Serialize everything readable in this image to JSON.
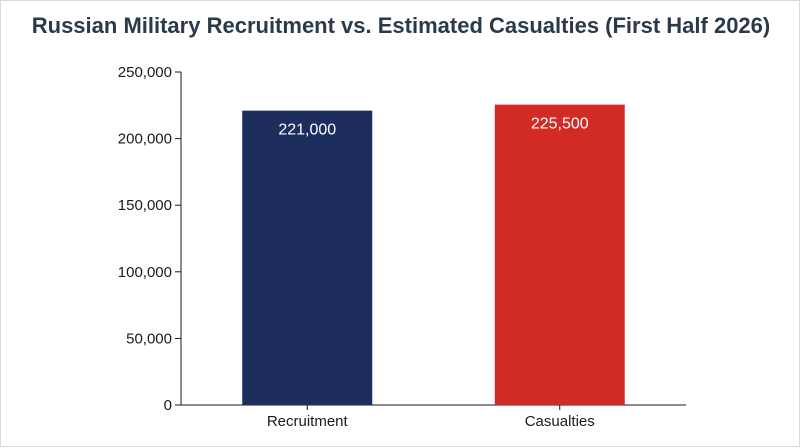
{
  "chart_data": {
    "type": "bar",
    "title": "Russian Military Recruitment vs. Estimated Casualties (First Half 2026)",
    "xlabel": "",
    "ylabel": "",
    "categories": [
      "Recruitment",
      "Casualties"
    ],
    "values": [
      221000,
      225500
    ],
    "value_labels": [
      "221,000",
      "225,500"
    ],
    "colors": [
      "#1c2d5e",
      "#d22b26"
    ],
    "ylim": [
      0,
      250000
    ],
    "yticks": [
      0,
      50000,
      100000,
      150000,
      200000,
      250000
    ],
    "ytick_labels": [
      "0",
      "50,000",
      "100,000",
      "150,000",
      "200,000",
      "250,000"
    ],
    "grid": false,
    "legend": "none"
  }
}
